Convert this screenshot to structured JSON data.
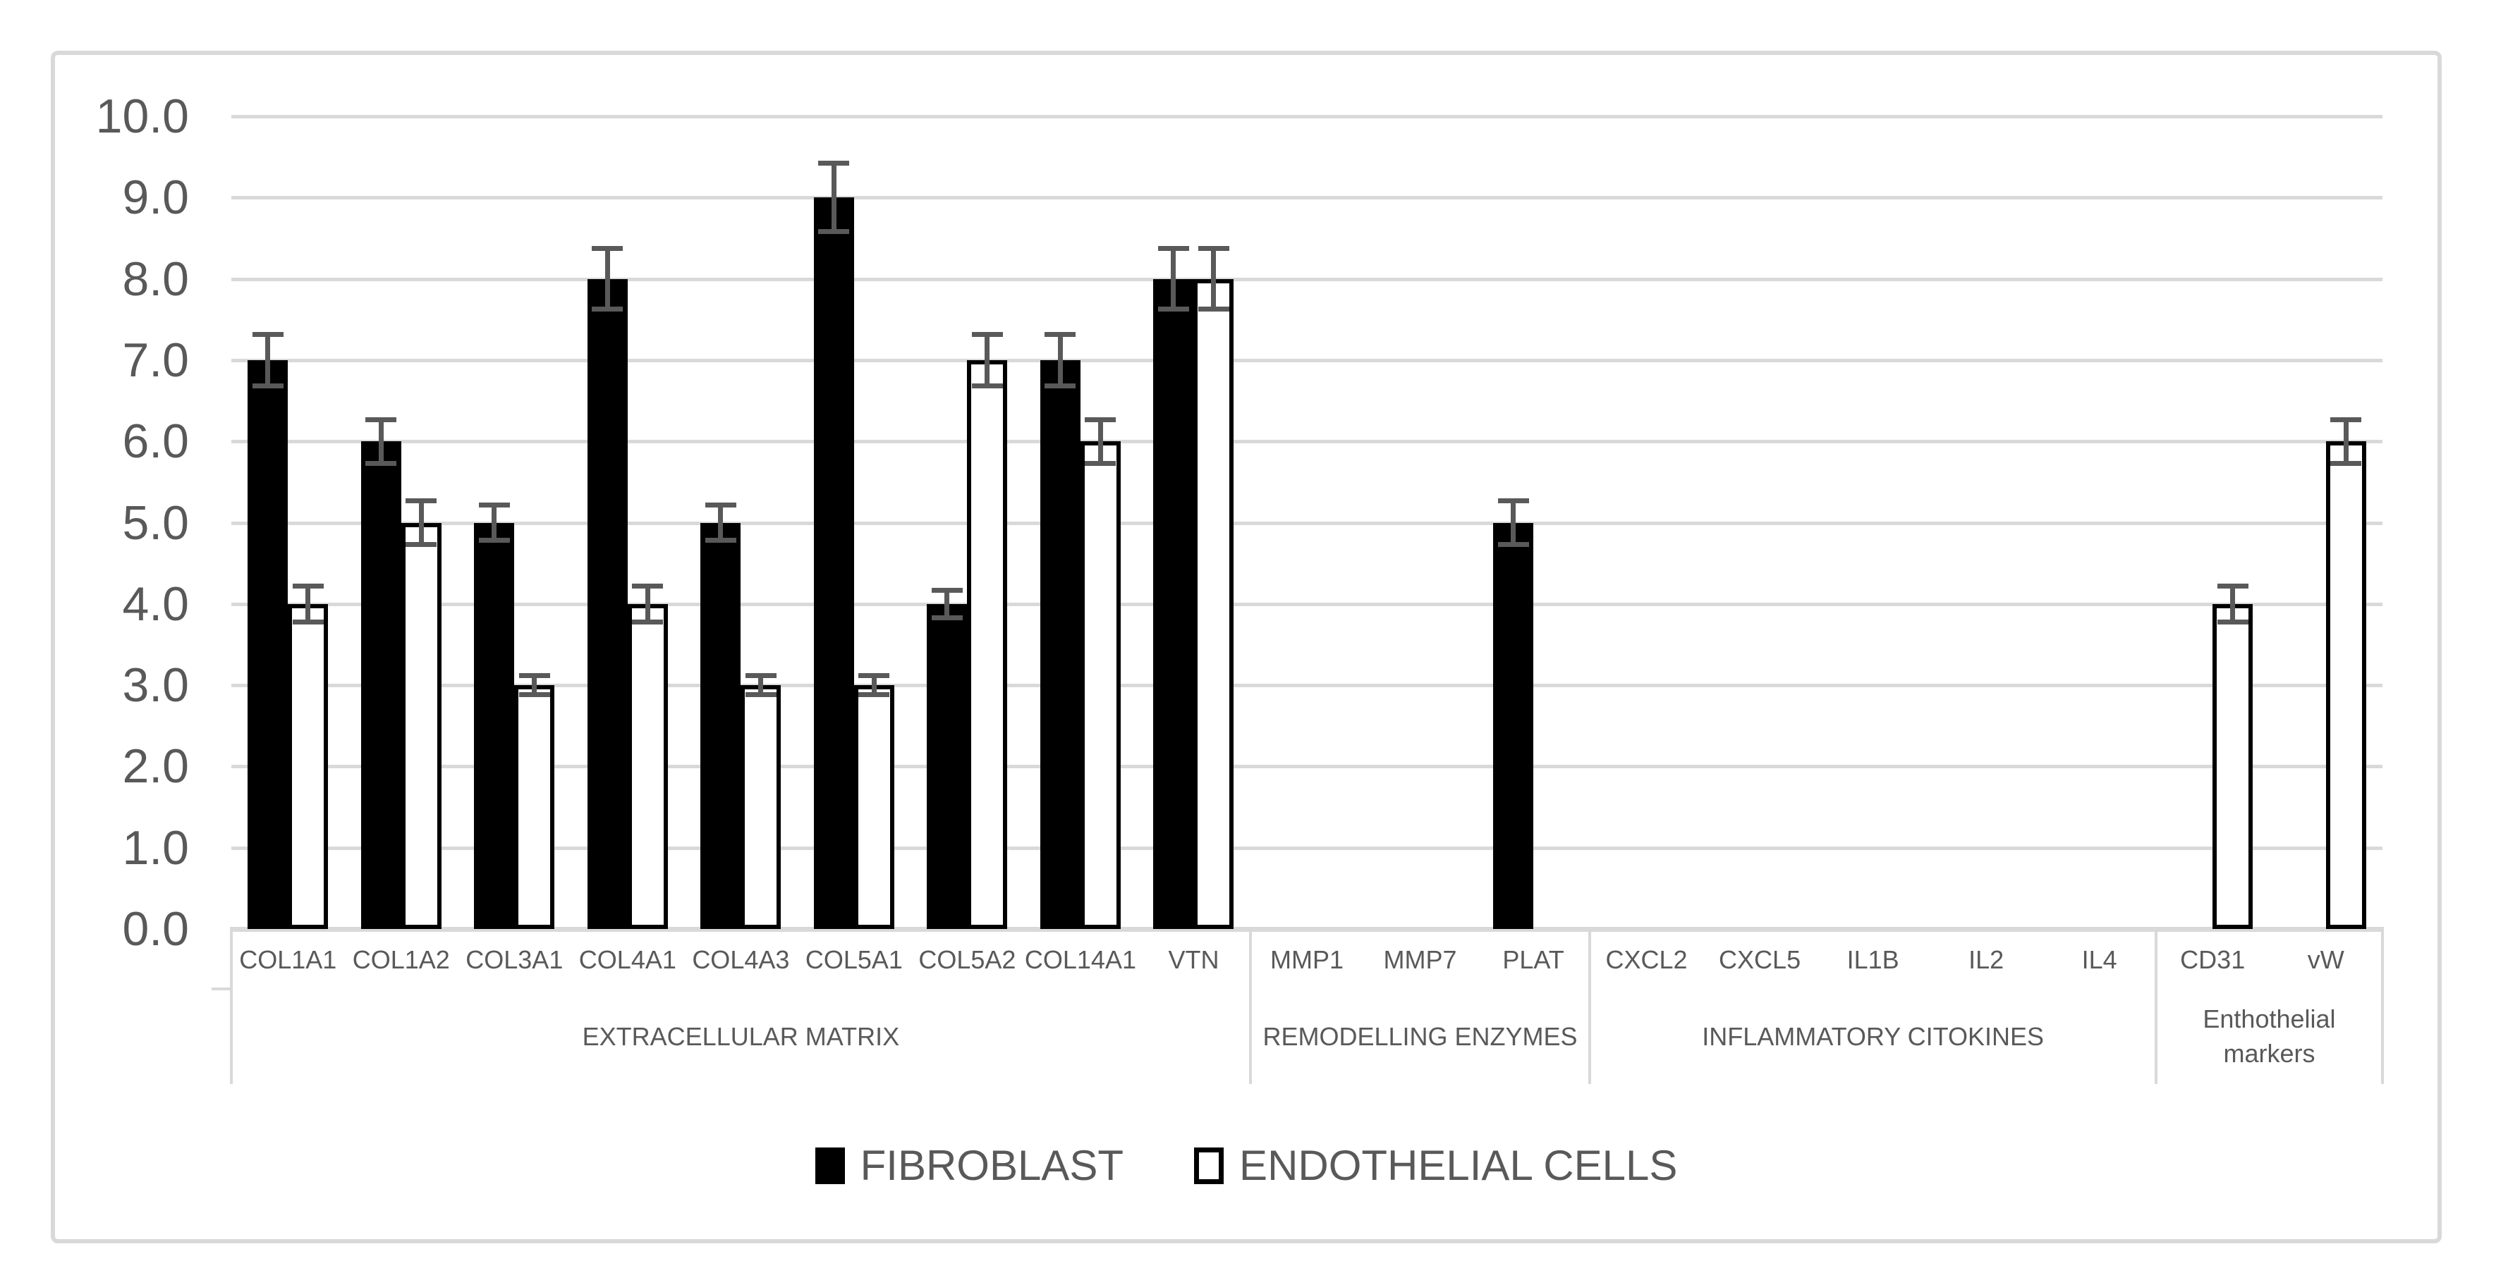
{
  "figure": {
    "background": "#ffffff",
    "frame_color": "#d9d9d9",
    "text_color": "#595959",
    "gridline_color": "#d9d9d9",
    "errorbar_color": "#595959"
  },
  "chart_data": {
    "type": "bar",
    "title": "",
    "xlabel": "",
    "ylabel": "",
    "ylim": [
      0,
      10
    ],
    "ytick_step": 1.0,
    "ytick_labels": [
      "0.0",
      "1.0",
      "2.0",
      "3.0",
      "4.0",
      "5.0",
      "6.0",
      "7.0",
      "8.0",
      "9.0",
      "10.0"
    ],
    "grid": true,
    "legend_position": "bottom-center",
    "categories": [
      "COL1A1",
      "COL1A2",
      "COL3A1",
      "COL4A1",
      "COL4A3",
      "COL5A1",
      "COL5A2",
      "COL14A1",
      "VTN",
      "MMP1",
      "MMP7",
      "PLAT",
      "CXCL2",
      "CXCL5",
      "IL1B",
      "IL2",
      "IL4",
      "CD31",
      "vW"
    ],
    "groups": [
      {
        "label": "EXTRACELLULAR MATRIX",
        "span": 9
      },
      {
        "label": "REMODELLING ENZYMES",
        "span": 3
      },
      {
        "label": "INFLAMMATORY CITOKINES",
        "span": 5
      },
      {
        "label": "Enthothelial markers",
        "span": 2
      }
    ],
    "series": [
      {
        "name": "FIBROBLAST",
        "fill": "#000000",
        "border": "#000000",
        "values": [
          7.0,
          6.0,
          5.0,
          8.0,
          5.0,
          9.0,
          4.0,
          7.0,
          8.0,
          0,
          0,
          5.0,
          0,
          0,
          0,
          0,
          0,
          0,
          0
        ],
        "errors": [
          0.35,
          0.3,
          0.25,
          0.4,
          0.25,
          0.45,
          0.2,
          0.35,
          0.4,
          0,
          0,
          0.3,
          0,
          0,
          0,
          0,
          0,
          0,
          0
        ]
      },
      {
        "name": "ENDOTHELIAL CELLS",
        "fill": "#ffffff",
        "border": "#000000",
        "values": [
          4.0,
          5.0,
          3.0,
          4.0,
          3.0,
          3.0,
          7.0,
          6.0,
          8.0,
          0,
          0,
          0,
          0,
          0,
          0,
          0,
          0,
          4.0,
          6.0
        ],
        "errors": [
          0.25,
          0.3,
          0.15,
          0.25,
          0.15,
          0.15,
          0.35,
          0.3,
          0.4,
          0,
          0,
          0,
          0,
          0,
          0,
          0,
          0,
          0.25,
          0.3
        ]
      }
    ]
  }
}
